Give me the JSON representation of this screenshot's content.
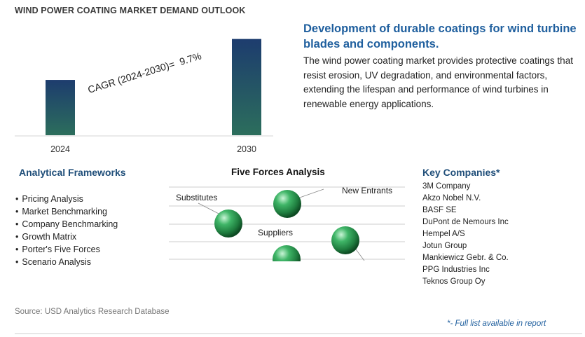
{
  "title": "WIND POWER COATING MARKET DEMAND OUTLOOK",
  "chart_data": {
    "type": "bar",
    "categories": [
      "2024",
      "2030"
    ],
    "values": [
      1.0,
      1.74
    ],
    "ylim": [
      0,
      1.9
    ],
    "grid": false,
    "colors": {
      "bar_top": "#1d3c6e",
      "bar_bottom": "#2c6e5c"
    },
    "annotation": {
      "label": "CAGR (2024-2030)=",
      "value": "9.7%"
    }
  },
  "headline": "Development of durable coatings for wind turbine blades and components.",
  "description": "The wind power coating market provides protective coatings that resist erosion, UV degradation, and environmental factors, extending the lifespan and performance of wind turbines in renewable energy applications.",
  "analytical_frameworks": {
    "title": "Analytical Frameworks",
    "items": [
      "Pricing Analysis",
      "Market Benchmarking",
      "Company Benchmarking",
      "Growth Matrix",
      "Porter's Five Forces",
      "Scenario Analysis"
    ]
  },
  "five_forces": {
    "title": "Five Forces Analysis",
    "labels": {
      "substitutes": "Substitutes",
      "new_entrants": "New Entrants",
      "suppliers": "Suppliers"
    },
    "sphere_color": "#2e9e52"
  },
  "key_companies": {
    "title": "Key Companies*",
    "items": [
      "3M Company",
      "Akzo Nobel N.V.",
      "BASF SE",
      "DuPont de Nemours Inc",
      "Hempel A/S",
      "Jotun Group",
      "Mankiewicz Gebr. & Co.",
      "PPG Industries Inc",
      "Teknos Group Oy"
    ]
  },
  "source": "Source: USD Analytics Research Database",
  "footnote": "*- Full list available in report"
}
